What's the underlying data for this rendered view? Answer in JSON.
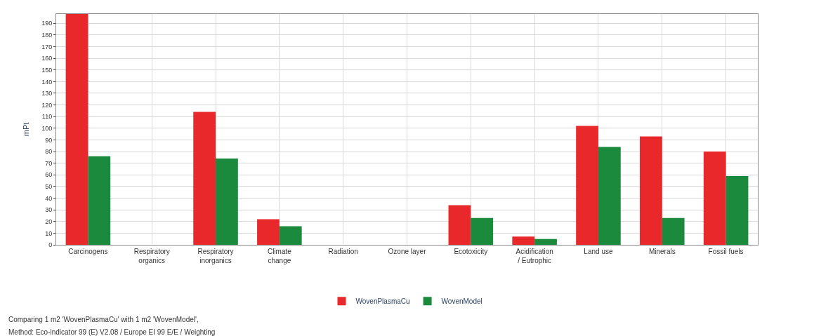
{
  "chart_data": {
    "type": "bar",
    "ylabel": "mPt",
    "categories": [
      "Carcinogens",
      "Respiratory\norganics",
      "Respiratory\ninorganics",
      "Climate\nchange",
      "Radiation",
      "Ozone layer",
      "Ecotoxicity",
      "Acidification\n/ Eutrophic",
      "Land use",
      "Minerals",
      "Fossil fuels"
    ],
    "series": [
      {
        "name": "WovenPlasmaCu",
        "color": "#e8282a",
        "values": [
          198,
          0,
          114,
          22,
          0,
          0,
          34,
          7,
          102,
          93,
          80
        ]
      },
      {
        "name": "WovenModel",
        "color": "#1c8a3c",
        "values": [
          76,
          0,
          74,
          16,
          0,
          0,
          23,
          5,
          84,
          23,
          59
        ]
      }
    ],
    "ylim": [
      0,
      198
    ],
    "yticks": [
      0,
      10,
      20,
      30,
      40,
      50,
      60,
      70,
      80,
      90,
      100,
      110,
      120,
      130,
      140,
      150,
      160,
      170,
      180,
      190
    ],
    "grid": true,
    "legend": "bottom",
    "annotations": [
      "Comparing 1 m2 'WovenPlasmaCu' with 1 m2 'WovenModel',",
      "Method: Eco-indicator 99 (E) V2.08 / Europe EI 99 E/E / Weighting"
    ]
  }
}
